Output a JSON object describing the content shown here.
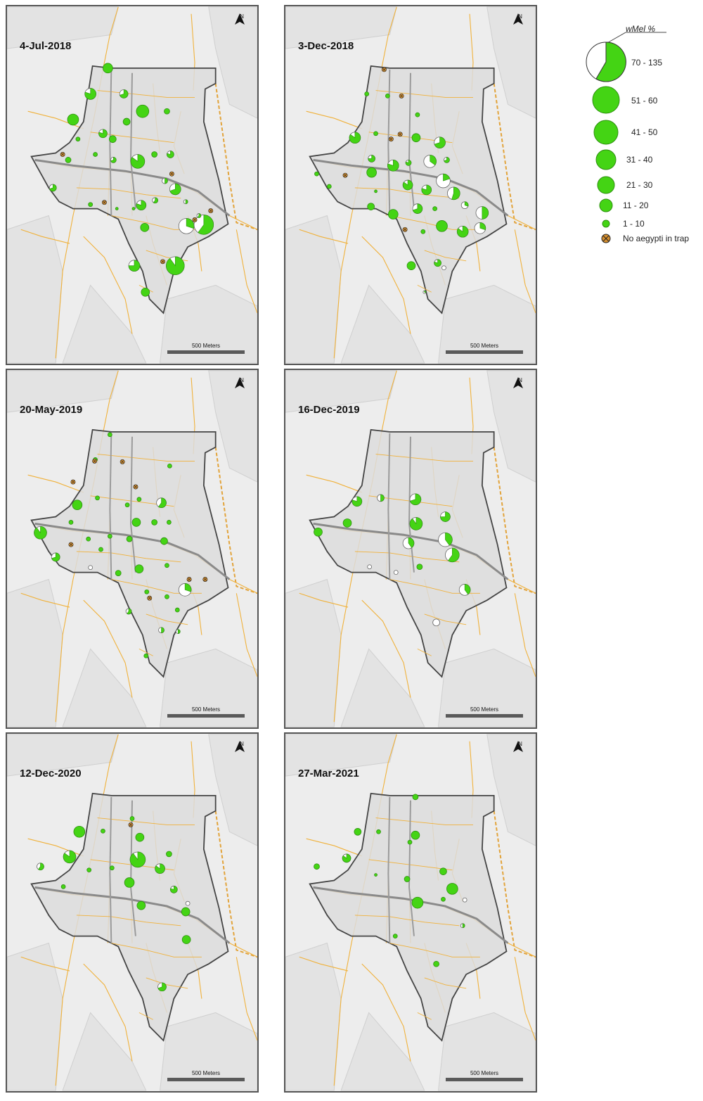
{
  "panels": [
    {
      "date": "4-Jul-2018",
      "scale_label": "500 Meters",
      "north_label": "N"
    },
    {
      "date": "3-Dec-2018",
      "scale_label": "500 Meters",
      "north_label": "N"
    },
    {
      "date": "20-May-2019",
      "scale_label": "500 Meters",
      "north_label": "N"
    },
    {
      "date": "16-Dec-2019",
      "scale_label": "500 Meters",
      "north_label": "N"
    },
    {
      "date": "12-Dec-2020",
      "scale_label": "500 Meters",
      "north_label": "N"
    },
    {
      "date": "27-Mar-2021",
      "scale_label": "500 Meters",
      "north_label": "N"
    }
  ],
  "legend": {
    "title": "wMel %",
    "items": [
      {
        "label": "70 - 135",
        "kind": "pie"
      },
      {
        "label": "51 - 60",
        "kind": "circle"
      },
      {
        "label": "41 - 50",
        "kind": "circle"
      },
      {
        "label": "31 - 40",
        "kind": "circle"
      },
      {
        "label": "21 - 30",
        "kind": "circle"
      },
      {
        "label": "11 - 20",
        "kind": "circle"
      },
      {
        "label": "1 - 10",
        "kind": "circle"
      },
      {
        "label": "No aegypti in trap",
        "kind": "no-trap"
      }
    ]
  },
  "colors": {
    "positive": "#44d414",
    "negative": "#ffffff",
    "no_trap": "#d7902f",
    "roads": "#f0b13a",
    "area": "#dcdcdc",
    "boundary": "#444444"
  }
}
